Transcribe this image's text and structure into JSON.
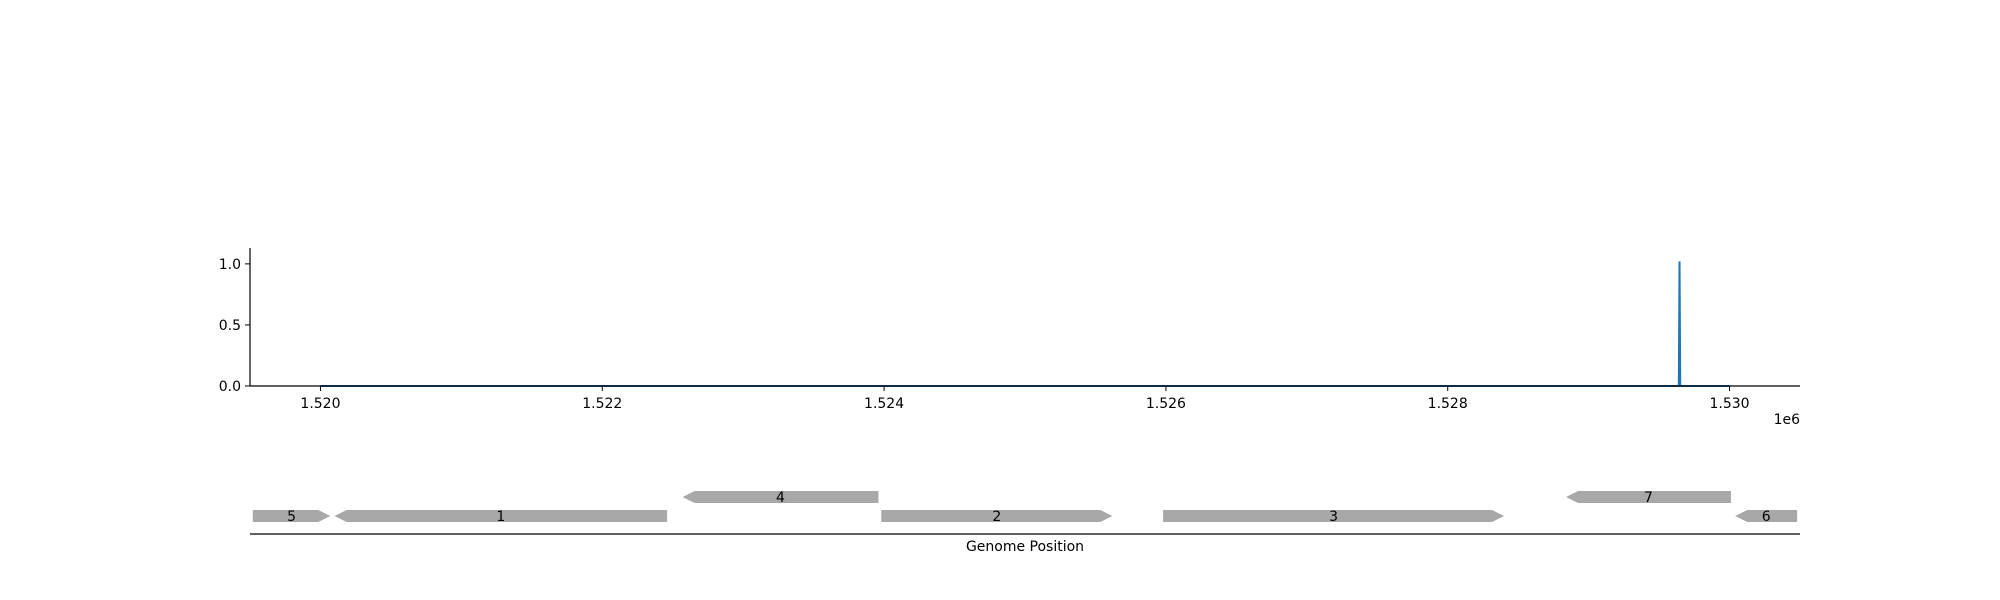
{
  "chart_data": {
    "type": "line",
    "xlabel": "Genome Position",
    "ylabel": "",
    "title": "",
    "x_offset_label": "1e6",
    "xlim": [
      1519500,
      1530500
    ],
    "ylim": [
      0,
      1.13
    ],
    "x_ticks": [
      1520000,
      1522000,
      1524000,
      1526000,
      1528000,
      1530000
    ],
    "x_tick_labels": [
      "1.520",
      "1.522",
      "1.524",
      "1.526",
      "1.528",
      "1.530"
    ],
    "y_ticks": [
      0,
      0.5,
      1
    ],
    "y_tick_labels": [
      "0.0",
      "0.5",
      "1.0"
    ],
    "grid": false,
    "series": [
      {
        "color": "#1f77b4",
        "x": [
          1520000,
          1529640,
          1529645,
          1529650,
          1530000
        ],
        "y": [
          0,
          0,
          1.02,
          0,
          0
        ]
      }
    ],
    "genes": [
      {
        "label": "5",
        "start": 1519520,
        "end": 1520070,
        "strand": "+",
        "row": 0
      },
      {
        "label": "1",
        "start": 1520100,
        "end": 1522460,
        "strand": "-",
        "row": 0
      },
      {
        "label": "4",
        "start": 1522570,
        "end": 1523960,
        "strand": "-",
        "row": 1
      },
      {
        "label": "2",
        "start": 1523980,
        "end": 1525620,
        "strand": "+",
        "row": 0
      },
      {
        "label": "3",
        "start": 1525980,
        "end": 1528400,
        "strand": "+",
        "row": 0
      },
      {
        "label": "7",
        "start": 1528840,
        "end": 1530010,
        "strand": "-",
        "row": 1
      },
      {
        "label": "6",
        "start": 1530040,
        "end": 1530480,
        "strand": "-",
        "row": 0
      }
    ],
    "colors": {
      "line": "#1f77b4",
      "gene": "#a8a8a8",
      "axis": "#000000"
    }
  }
}
